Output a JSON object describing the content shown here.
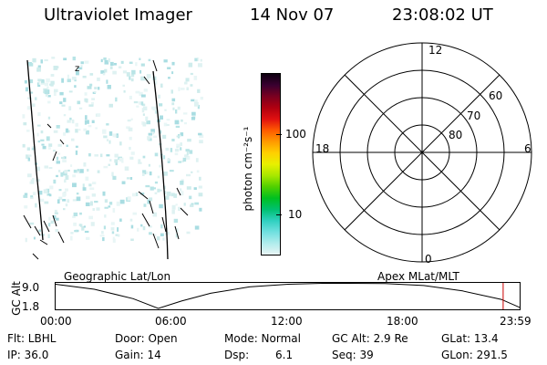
{
  "header": {
    "instrument": "Ultraviolet Imager",
    "date": "14 Nov 07",
    "time": "23:08:02 UT"
  },
  "colorbar": {
    "unit_label": "photon cm⁻²s⁻¹",
    "ticks": [
      "100",
      "10"
    ],
    "colors": [
      "#0d0010",
      "#3a0030",
      "#7a0020",
      "#b00010",
      "#e01010",
      "#ff5a00",
      "#ff9a00",
      "#ffd000",
      "#e8f000",
      "#a8e800",
      "#50d000",
      "#00c020",
      "#00c070",
      "#30d0c0",
      "#70e0e0",
      "#b0ecec",
      "#e8f4f4"
    ]
  },
  "polar": {
    "mlt_labels": [
      "12",
      "18",
      "6",
      "0"
    ],
    "mlat_labels": [
      "60",
      "70",
      "80"
    ]
  },
  "altitude_plot": {
    "ylabel": "GC Alt",
    "yticks": [
      "9.0",
      "1.8"
    ],
    "left_title": "Geographic Lat/Lon",
    "right_title": "Apex MLat/MLT",
    "xticks": [
      "00:00",
      "06:00",
      "12:00",
      "18:00",
      "23:59"
    ],
    "marker_color": "#cc0000",
    "curve_color": "#000000",
    "curve_points": [
      [
        0,
        9.0
      ],
      [
        2,
        7.5
      ],
      [
        4,
        4.7
      ],
      [
        5.3,
        1.8
      ],
      [
        6.5,
        4.0
      ],
      [
        8,
        6.3
      ],
      [
        10,
        8.2
      ],
      [
        12,
        9.0
      ],
      [
        14,
        9.3
      ],
      [
        17,
        9.2
      ],
      [
        19,
        8.6
      ],
      [
        21,
        7.0
      ],
      [
        23,
        4.5
      ],
      [
        24,
        2.0
      ]
    ],
    "marker_x": 23.1
  },
  "footer": {
    "flt": "Flt: LBHL",
    "ip": "IP: 36.0",
    "door": "Door: Open",
    "gain": "Gain: 14",
    "mode": "Mode: Normal",
    "dsp_label": "Dsp:",
    "dsp_value": "6.1",
    "gc_alt": "GC Alt: 2.9 Re",
    "seq": "Seq: 39",
    "glat": "GLat: 13.4",
    "glon": "GLon: 291.5"
  }
}
